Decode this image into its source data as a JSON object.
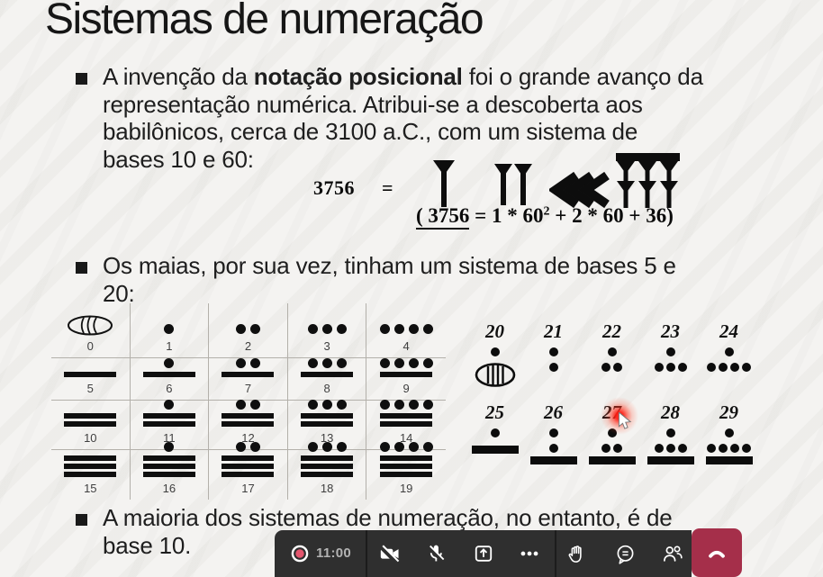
{
  "slide": {
    "title": "Sistemas de numeração",
    "bullet1": {
      "line1_pre": "A invenção da ",
      "line1_bold": "notação posicional",
      "line1_post": " foi o grande avanço da",
      "line2": "representação numérica. Atribui-se a descoberta aos",
      "line3": "babilônicos, cerca de 3100 a.C., com um sistema de",
      "line4": "bases 10 e 60:"
    },
    "formula": {
      "lhs": "3756",
      "eq": "=",
      "expl_underlined": "( 3756",
      "expl_mid": " = 1 * 60",
      "expl_sup": "2",
      "expl_rest": " + 2 * 60 + 36)",
      "cuneiform_symbols": [
        "one-wedge",
        "two-wedges",
        "three-chevrons-30",
        "six-wedges-cluster"
      ]
    },
    "bullet2": {
      "line1": "Os maias, por sua vez, tinham um sistema de bases 5 e",
      "line2": "20:"
    },
    "bullet3": {
      "line1": "A maioria dos sistemas de numeração, no entanto, é de",
      "line2": "base 10."
    },
    "maya_left_table": {
      "numbers": [
        0,
        1,
        2,
        3,
        4,
        5,
        6,
        7,
        8,
        9,
        10,
        11,
        12,
        13,
        14,
        15,
        16,
        17,
        18,
        19
      ]
    },
    "maya_right_table": {
      "rows": [
        [
          20,
          21,
          22,
          23,
          24
        ],
        [
          25,
          26,
          27,
          28,
          29
        ]
      ]
    },
    "laser_pointer_over": "27"
  },
  "toolbar": {
    "timer": "11:00",
    "icons": [
      "record-indicator",
      "camera-off-icon",
      "mic-off-icon",
      "share-screen-icon",
      "more-options-icon",
      "raise-hand-icon",
      "chat-icon",
      "people-icon",
      "hangup-icon"
    ],
    "colors": {
      "bar_bg": "#2f2f2f",
      "record_dot": "#e4566e",
      "hangup_red": "#a52f4a",
      "timer_text": "#b3b3b3"
    }
  }
}
